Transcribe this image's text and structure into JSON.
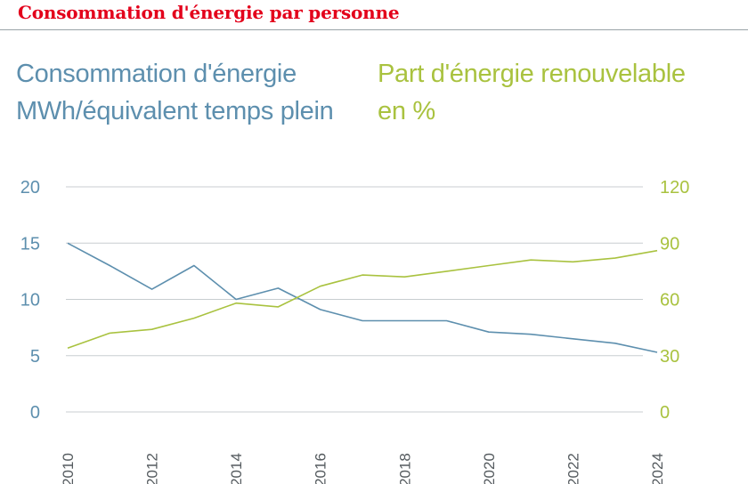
{
  "header": {
    "title": "Consommation d'énergie par personne"
  },
  "legend": {
    "left_line1": "Consommation d'énergie",
    "left_line2": "MWh/équivalent temps plein",
    "right_line1": "Part d'énergie renouvelable",
    "right_line2": "en %"
  },
  "chart_data": {
    "type": "line",
    "title": "Consommation d'énergie par personne",
    "x": [
      2010,
      2011,
      2012,
      2013,
      2014,
      2015,
      2016,
      2017,
      2018,
      2019,
      2020,
      2021,
      2022,
      2023,
      2024
    ],
    "x_ticks": [
      "2010",
      "2012",
      "2014",
      "2016",
      "2018",
      "2020",
      "2022",
      "2024"
    ],
    "xlim": [
      2010,
      2024
    ],
    "y_left": {
      "ylim": [
        0,
        20
      ],
      "ticks": [
        "0",
        "5",
        "10",
        "15",
        "20"
      ]
    },
    "y_right": {
      "ylim": [
        0,
        120
      ],
      "ticks": [
        "0",
        "30",
        "60",
        "90",
        "120"
      ]
    },
    "grid": true,
    "series": [
      {
        "name": "Consommation d'énergie MWh/équivalent temps plein",
        "axis": "left",
        "color": "#5d8fae",
        "values": [
          15.0,
          13.0,
          10.9,
          13.0,
          10.0,
          11.0,
          9.1,
          8.1,
          8.1,
          8.1,
          7.1,
          6.9,
          6.5,
          6.1,
          5.3
        ]
      },
      {
        "name": "Part d'énergie renouvelable en %",
        "axis": "right",
        "color": "#a9c23f",
        "values": [
          34,
          42,
          44,
          50,
          58,
          56,
          67,
          73,
          72,
          75,
          78,
          81,
          80,
          82,
          86
        ]
      }
    ]
  },
  "colors": {
    "headline": "#e3001b",
    "axis_left": "#5d8fae",
    "axis_right": "#a9c23f",
    "grid": "#c8cdd0"
  }
}
